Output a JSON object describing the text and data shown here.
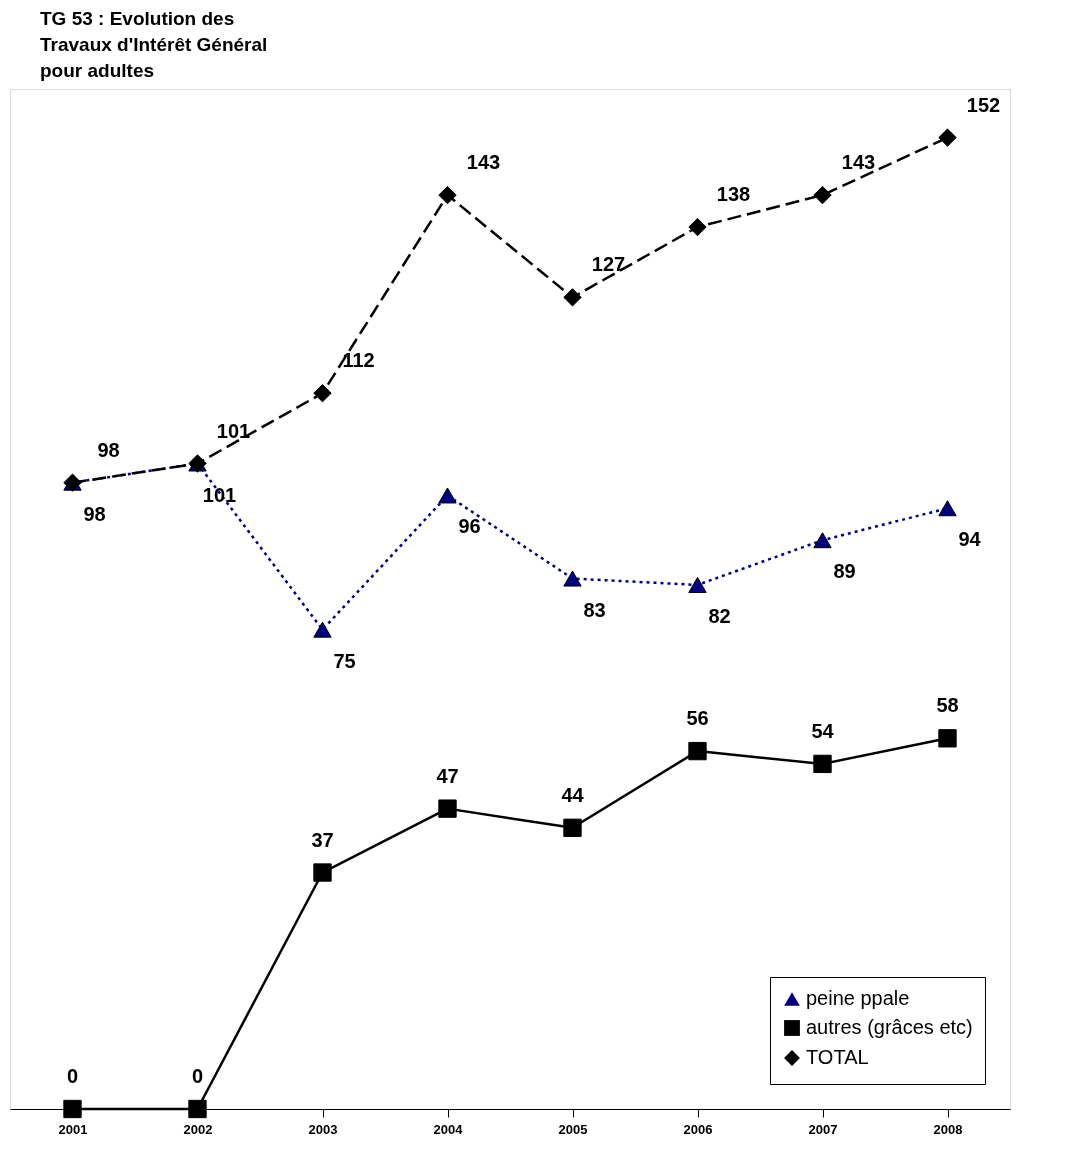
{
  "chart_data": {
    "type": "line",
    "title": "TG 53 : Evolution des\nTravaux d'Intérêt Général\npour adultes",
    "categories": [
      "2001",
      "2002",
      "2003",
      "2004",
      "2005",
      "2006",
      "2007",
      "2008"
    ],
    "series": [
      {
        "name": "peine ppale",
        "color": "#000080",
        "marker": "triangle",
        "line_style": "dotted",
        "values": [
          98,
          101,
          75,
          96,
          83,
          82,
          89,
          94
        ]
      },
      {
        "name": "autres (grâces etc)",
        "color": "#000000",
        "marker": "square",
        "line_style": "solid",
        "values": [
          0,
          0,
          37,
          47,
          44,
          56,
          54,
          58
        ]
      },
      {
        "name": "TOTAL",
        "color": "#000000",
        "marker": "diamond",
        "line_style": "dashed",
        "values": [
          98,
          101,
          112,
          143,
          127,
          138,
          143,
          152
        ]
      }
    ],
    "data_labels": true,
    "legend": "bottom right",
    "grid": false
  }
}
